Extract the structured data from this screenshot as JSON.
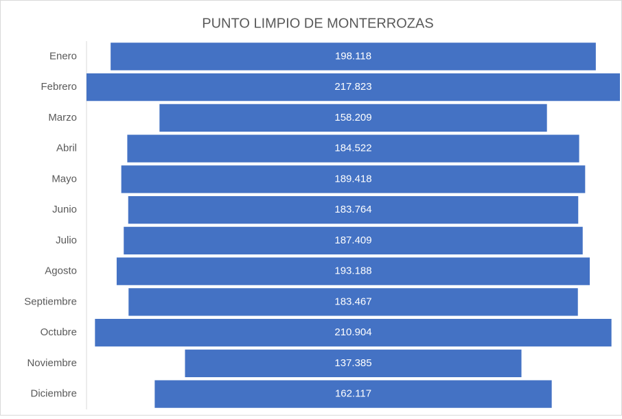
{
  "chart_data": {
    "type": "funnel",
    "title": "PUNTO LIMPIO DE MONTERROZAS",
    "categories": [
      "Enero",
      "Febrero",
      "Marzo",
      "Abril",
      "Mayo",
      "Junio",
      "Julio",
      "Agosto",
      "Septiembre",
      "Octubre",
      "Noviembre",
      "Diciembre"
    ],
    "values": [
      198.118,
      217.823,
      158.209,
      184.522,
      189.418,
      183.764,
      187.409,
      193.188,
      183.467,
      210.904,
      137.385,
      162.117
    ],
    "color": "#4472c4"
  }
}
